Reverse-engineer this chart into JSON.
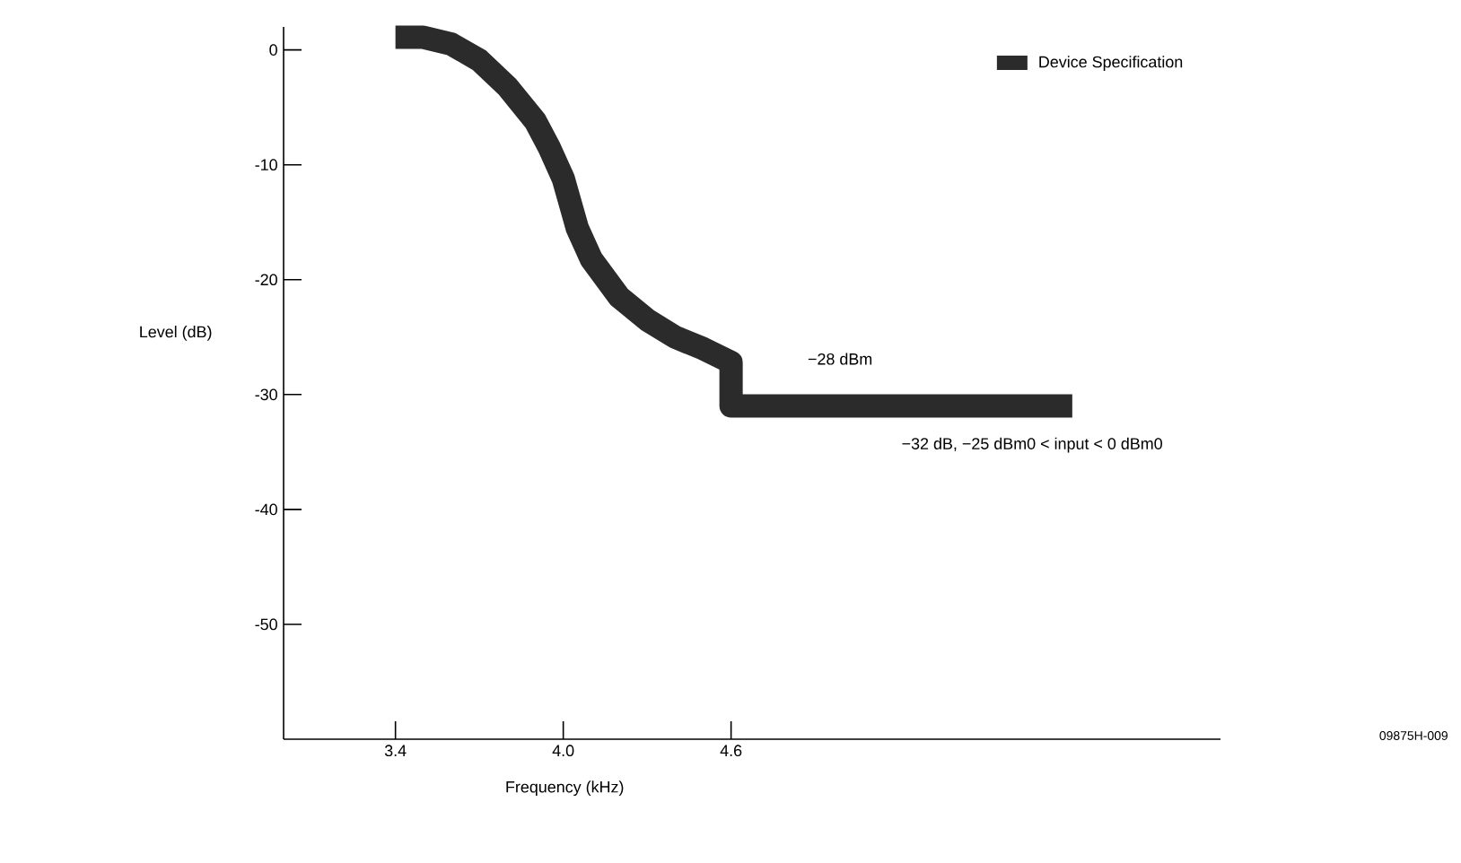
{
  "chart_data": {
    "type": "line",
    "xlabel": "Frequency (kHz)",
    "ylabel": "Level (dB)",
    "xlim": [
      3.0,
      6.35
    ],
    "ylim": [
      -60,
      2
    ],
    "xticks": [
      {
        "value": 3.4,
        "label": "3.4"
      },
      {
        "value": 4.0,
        "label": "4.0"
      },
      {
        "value": 4.6,
        "label": "4.6"
      }
    ],
    "yticks": [
      -50,
      -40,
      -30,
      -20,
      -10,
      0
    ],
    "series": [
      {
        "name": "Device Specification",
        "color": "#2b2b2b",
        "x": [
          3.4,
          3.5,
          3.6,
          3.7,
          3.8,
          3.9,
          3.95,
          4.0,
          4.05,
          4.1,
          4.2,
          4.3,
          4.4,
          4.5,
          4.6,
          4.6,
          5.82
        ],
        "values": [
          1.1,
          1.1,
          0.5,
          -0.9,
          -3.2,
          -6.2,
          -8.5,
          -11.2,
          -15.5,
          -18.2,
          -21.5,
          -23.5,
          -25,
          -26,
          -27.2,
          -31,
          -31
        ]
      }
    ],
    "legend": "top right",
    "annotations": [
      "−28 dBm",
      "−32 dB, −25 dBm0 < input < 0 dBm0",
      "09875H-009"
    ]
  }
}
